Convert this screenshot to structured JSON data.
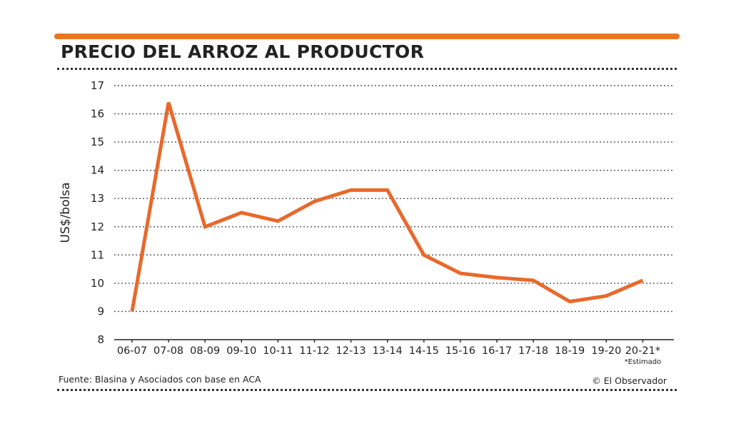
{
  "title": "PRECIO DEL ARROZ AL PRODUCTOR",
  "source": "Fuente: Blasina y Asociados con base en ACA",
  "credit": "© El Observador",
  "colors": {
    "accent": "#e87722",
    "line": "#e8692b",
    "text": "#222222"
  },
  "chart_data": {
    "type": "line",
    "title": "PRECIO DEL ARROZ AL PRODUCTOR",
    "xlabel": "",
    "ylabel": "US$/bolsa",
    "ylim": [
      8,
      17
    ],
    "yticks": [
      8,
      9,
      10,
      11,
      12,
      13,
      14,
      15,
      16,
      17
    ],
    "grid": true,
    "categories": [
      "06-07",
      "07-08",
      "08-09",
      "09-10",
      "10-11",
      "11-12",
      "12-13",
      "13-14",
      "14-15",
      "15-16",
      "16-17",
      "17-18",
      "18-19",
      "19-20",
      "20-21*"
    ],
    "series": [
      {
        "values": [
          9.0,
          16.4,
          12.0,
          12.5,
          12.2,
          12.9,
          13.3,
          13.3,
          11.0,
          10.35,
          10.2,
          10.1,
          9.35,
          9.55,
          10.1
        ]
      }
    ],
    "annotation": "*Estimado"
  }
}
